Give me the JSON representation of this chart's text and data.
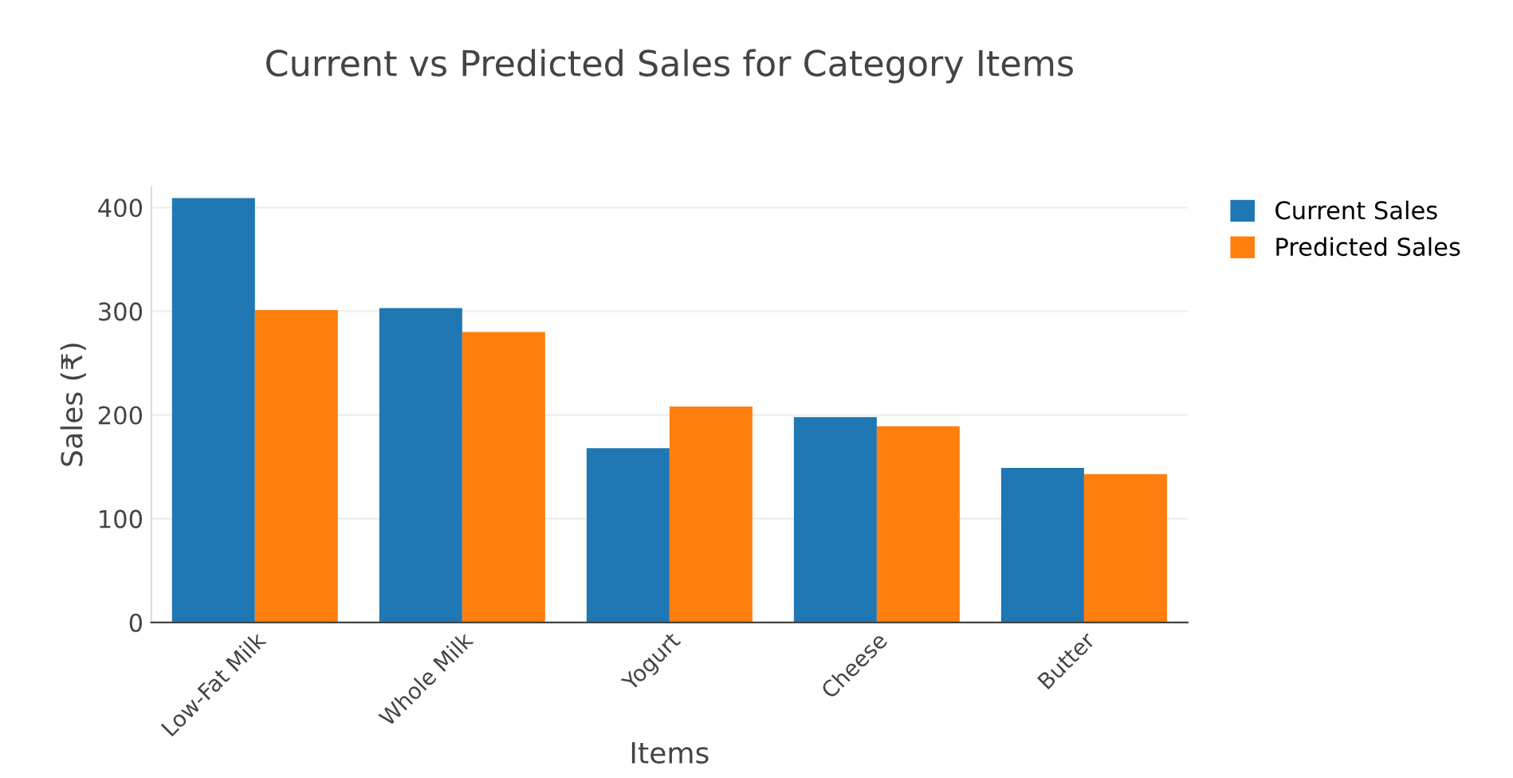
{
  "chart_data": {
    "type": "bar",
    "title": "Current vs Predicted Sales for Category Items",
    "xlabel": "Items",
    "ylabel": "Sales (₹)",
    "categories": [
      "Low-Fat Milk",
      "Whole Milk",
      "Yogurt",
      "Cheese",
      "Butter"
    ],
    "series": [
      {
        "name": "Current Sales",
        "color": "#1f77b4",
        "values": [
          409,
          303,
          168,
          198,
          149
        ]
      },
      {
        "name": "Predicted Sales",
        "color": "#ff7f0e",
        "values": [
          301,
          280,
          208,
          189,
          143
        ]
      }
    ],
    "ylim": [
      0,
      420
    ],
    "yticks": [
      0,
      100,
      200,
      300,
      400
    ],
    "grid": "y",
    "legend": "top right"
  }
}
